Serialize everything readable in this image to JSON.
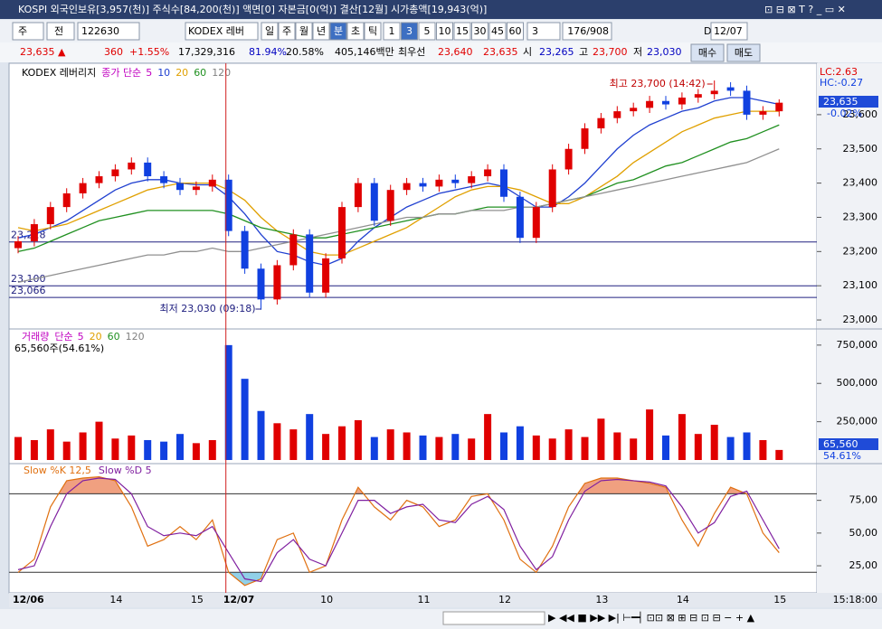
{
  "title_bar": "KOSPI 외국인보유[3,957(천)] 주식수[84,200(천)] 액면[0] 자본금[0(억)] 결산[12월] 시가총액[19,943(억)]",
  "toolbar": {
    "market": "주",
    "mode": "전",
    "code": "122630",
    "name": "KODEX 레버",
    "periods": [
      "일",
      "주",
      "월",
      "년",
      "분",
      "초",
      "틱"
    ],
    "intervals": [
      "1",
      "3",
      "5",
      "10",
      "15",
      "30",
      "45",
      "60"
    ],
    "count": "3",
    "range": "176/908",
    "date_flag": "D",
    "date": "12/07"
  },
  "quote_row": [
    {
      "text": "23,635 ▲",
      "color": "#e00000"
    },
    {
      "text": "360",
      "color": "#e00000"
    },
    {
      "text": "+1.55%",
      "color": "#e00000"
    },
    {
      "text": "17,329,316",
      "color": "#000000"
    },
    {
      "text": "81.94%",
      "color": "#0000c0"
    },
    {
      "text": "20.58%",
      "color": "#000000"
    },
    {
      "text": "405,146백만",
      "color": "#000000"
    },
    {
      "text": "최우선",
      "color": "#000000"
    },
    {
      "text": "23,640",
      "color": "#e00000"
    },
    {
      "text": "23,635",
      "color": "#e00000"
    },
    {
      "text": "시",
      "color": "#000000"
    },
    {
      "text": "23,265",
      "color": "#0000c0"
    },
    {
      "text": "고",
      "color": "#000000"
    },
    {
      "text": "23,700",
      "color": "#e00000"
    },
    {
      "text": "저",
      "color": "#000000"
    },
    {
      "text": "23,030",
      "color": "#0000c0"
    }
  ],
  "buttons": [
    "매수",
    "매도"
  ],
  "chart_data": [
    {
      "type": "candlestick",
      "name": "KODEX 레버리지",
      "legend_label": "종가 단순",
      "legend_periods": [
        {
          "label": "5",
          "color": "#c000c0"
        },
        {
          "label": "10",
          "color": "#2040d0"
        },
        {
          "label": "20",
          "color": "#e0a000"
        },
        {
          "label": "60",
          "color": "#209020"
        },
        {
          "label": "120",
          "color": "#808080"
        }
      ],
      "categories": [
        "12/06",
        null,
        null,
        null,
        null,
        null,
        "14",
        null,
        null,
        null,
        null,
        "15",
        null,
        "12/07",
        null,
        null,
        null,
        null,
        null,
        "10",
        null,
        null,
        null,
        null,
        null,
        "11",
        null,
        null,
        null,
        null,
        "12",
        null,
        null,
        null,
        null,
        null,
        "13",
        null,
        null,
        null,
        null,
        "14",
        null,
        null,
        null,
        null,
        null,
        "15"
      ],
      "open": [
        23210,
        23230,
        23280,
        23330,
        23370,
        23400,
        23420,
        23440,
        23460,
        23420,
        23400,
        23380,
        23390,
        23410,
        23260,
        23150,
        23060,
        23160,
        23250,
        23080,
        23180,
        23330,
        23400,
        23290,
        23380,
        23400,
        23390,
        23410,
        23400,
        23420,
        23440,
        23360,
        23240,
        23330,
        23440,
        23500,
        23560,
        23590,
        23610,
        23620,
        23640,
        23630,
        23650,
        23660,
        23680,
        23670,
        23600,
        23610
      ],
      "high": [
        23245,
        23295,
        23345,
        23385,
        23415,
        23435,
        23455,
        23475,
        23475,
        23435,
        23415,
        23405,
        23425,
        23425,
        23275,
        23165,
        23175,
        23265,
        23265,
        23195,
        23345,
        23415,
        23415,
        23395,
        23415,
        23415,
        23425,
        23425,
        23435,
        23455,
        23455,
        23375,
        23345,
        23455,
        23515,
        23575,
        23605,
        23625,
        23635,
        23655,
        23655,
        23665,
        23675,
        23700,
        23695,
        23685,
        23625,
        23645
      ],
      "low": [
        23195,
        23215,
        23265,
        23315,
        23355,
        23385,
        23405,
        23425,
        23405,
        23385,
        23365,
        23365,
        23375,
        23245,
        23135,
        23030,
        23045,
        23145,
        23065,
        23065,
        23165,
        23315,
        23275,
        23275,
        23365,
        23375,
        23375,
        23385,
        23385,
        23405,
        23345,
        23225,
        23225,
        23315,
        23425,
        23485,
        23545,
        23575,
        23595,
        23605,
        23615,
        23615,
        23635,
        23645,
        23655,
        23585,
        23585,
        23595
      ],
      "close": [
        23230,
        23280,
        23330,
        23370,
        23400,
        23420,
        23440,
        23460,
        23420,
        23400,
        23380,
        23390,
        23410,
        23260,
        23150,
        23060,
        23160,
        23250,
        23080,
        23180,
        23330,
        23400,
        23290,
        23380,
        23400,
        23390,
        23410,
        23400,
        23420,
        23440,
        23360,
        23240,
        23330,
        23440,
        23500,
        23560,
        23590,
        23610,
        23620,
        23640,
        23630,
        23650,
        23660,
        23670,
        23670,
        23600,
        23610,
        23635
      ],
      "up_color": "#e00000",
      "down_color": "#1040e0",
      "moving_averages": [
        {
          "color": "#2040d0",
          "values": [
            23240,
            23250,
            23270,
            23290,
            23320,
            23350,
            23380,
            23400,
            23410,
            23410,
            23400,
            23395,
            23395,
            23360,
            23310,
            23250,
            23200,
            23190,
            23170,
            23160,
            23180,
            23230,
            23270,
            23300,
            23330,
            23350,
            23370,
            23380,
            23390,
            23400,
            23390,
            23360,
            23330,
            23330,
            23360,
            23400,
            23450,
            23500,
            23540,
            23570,
            23590,
            23610,
            23620,
            23640,
            23650,
            23650,
            23640,
            23630
          ]
        },
        {
          "color": "#e0a000",
          "values": [
            23270,
            23260,
            23270,
            23280,
            23300,
            23320,
            23340,
            23360,
            23380,
            23390,
            23400,
            23400,
            23400,
            23380,
            23350,
            23300,
            23260,
            23230,
            23200,
            23190,
            23190,
            23210,
            23230,
            23250,
            23270,
            23300,
            23330,
            23360,
            23380,
            23390,
            23390,
            23380,
            23360,
            23340,
            23340,
            23360,
            23390,
            23420,
            23460,
            23490,
            23520,
            23550,
            23570,
            23590,
            23600,
            23610,
            23610,
            23610
          ]
        },
        {
          "color": "#209020",
          "values": [
            23200,
            23210,
            23230,
            23250,
            23270,
            23290,
            23300,
            23310,
            23320,
            23320,
            23320,
            23320,
            23320,
            23310,
            23290,
            23270,
            23260,
            23250,
            23240,
            23240,
            23250,
            23260,
            23270,
            23280,
            23290,
            23300,
            23310,
            23310,
            23320,
            23330,
            23330,
            23330,
            23330,
            23340,
            23350,
            23360,
            23380,
            23400,
            23410,
            23430,
            23450,
            23460,
            23480,
            23500,
            23520,
            23530,
            23550,
            23570
          ]
        },
        {
          "color": "#909090",
          "values": [
            23110,
            23120,
            23130,
            23140,
            23150,
            23160,
            23170,
            23180,
            23190,
            23190,
            23200,
            23200,
            23210,
            23200,
            23200,
            23210,
            23220,
            23230,
            23240,
            23250,
            23260,
            23270,
            23280,
            23290,
            23300,
            23300,
            23310,
            23310,
            23320,
            23320,
            23320,
            23330,
            23330,
            23340,
            23350,
            23360,
            23370,
            23380,
            23390,
            23400,
            23410,
            23420,
            23430,
            23440,
            23450,
            23460,
            23480,
            23500
          ]
        }
      ],
      "levels": [
        {
          "value": 23228,
          "label": "23,228"
        },
        {
          "value": 23100,
          "label": "23,100"
        },
        {
          "value": 23066,
          "label": "23,066"
        }
      ],
      "annotations": {
        "high": "최고 23,700 (14:42)",
        "low": "최저 23,030 (09:18)"
      },
      "side_labels": {
        "lc": "LC:2.63",
        "hc": "HC:-0.27",
        "last": "23,635",
        "change": "-0.02%"
      },
      "ylim": [
        22979,
        23745
      ],
      "yticks": [
        {
          "value": 23000,
          "label": "23,000"
        },
        {
          "value": 23100,
          "label": "23,100"
        },
        {
          "value": 23200,
          "label": "23,200"
        },
        {
          "value": 23300,
          "label": "23,300"
        },
        {
          "value": 23400,
          "label": "23,400"
        },
        {
          "value": 23500,
          "label": "23,500"
        },
        {
          "value": 23600,
          "label": "23,600"
        }
      ]
    },
    {
      "type": "volume",
      "name": "거래량",
      "legend_label": "단순",
      "legend_periods": [
        {
          "label": "5",
          "color": "#c000c0"
        },
        {
          "label": "20",
          "color": "#e0a000"
        },
        {
          "label": "60",
          "color": "#209020"
        },
        {
          "label": "120",
          "color": "#808080"
        }
      ],
      "info": "65,560주(54.61%)",
      "values": [
        150000,
        130000,
        200000,
        120000,
        180000,
        250000,
        140000,
        160000,
        130000,
        120000,
        170000,
        110000,
        130000,
        750000,
        530000,
        320000,
        240000,
        200000,
        300000,
        170000,
        220000,
        260000,
        150000,
        200000,
        180000,
        160000,
        150000,
        170000,
        140000,
        300000,
        180000,
        220000,
        160000,
        140000,
        200000,
        150000,
        270000,
        180000,
        140000,
        330000,
        160000,
        300000,
        170000,
        230000,
        150000,
        180000,
        130000,
        65560
      ],
      "side_labels": {
        "last": "65,560",
        "ratio": "54.61%"
      },
      "ylim": [
        0,
        820000
      ],
      "yticks": [
        {
          "value": 250000,
          "label": "250,000"
        },
        {
          "value": 500000,
          "label": "500,000"
        },
        {
          "value": 750000,
          "label": "750,000"
        }
      ]
    },
    {
      "type": "stochastic",
      "series": [
        {
          "name": "Slow %K 12,5",
          "color": "#e07010",
          "values": [
            20,
            30,
            70,
            90,
            92,
            93,
            90,
            70,
            40,
            45,
            55,
            45,
            60,
            20,
            10,
            15,
            45,
            50,
            20,
            25,
            60,
            85,
            70,
            60,
            75,
            70,
            55,
            60,
            78,
            80,
            60,
            30,
            20,
            40,
            70,
            88,
            92,
            92,
            90,
            88,
            85,
            60,
            40,
            65,
            85,
            80,
            50,
            35
          ]
        },
        {
          "name": "Slow %D 5",
          "color": "#8020a0",
          "values": [
            22,
            25,
            55,
            80,
            90,
            92,
            91,
            80,
            55,
            48,
            50,
            48,
            55,
            35,
            15,
            13,
            35,
            45,
            30,
            25,
            50,
            75,
            75,
            65,
            70,
            72,
            60,
            58,
            72,
            78,
            68,
            40,
            22,
            32,
            60,
            82,
            90,
            91,
            90,
            89,
            86,
            70,
            50,
            58,
            78,
            82,
            60,
            38
          ]
        }
      ],
      "levels": [
        80,
        20
      ],
      "over_color": "#f0a080",
      "under_color": "#90d0e8",
      "ylim": [
        5,
        101
      ],
      "yticks": [
        {
          "value": 25,
          "label": "25,00"
        },
        {
          "value": 50,
          "label": "50,00"
        },
        {
          "value": 75,
          "label": "75,00"
        }
      ]
    }
  ],
  "time_label": "15:18:00"
}
